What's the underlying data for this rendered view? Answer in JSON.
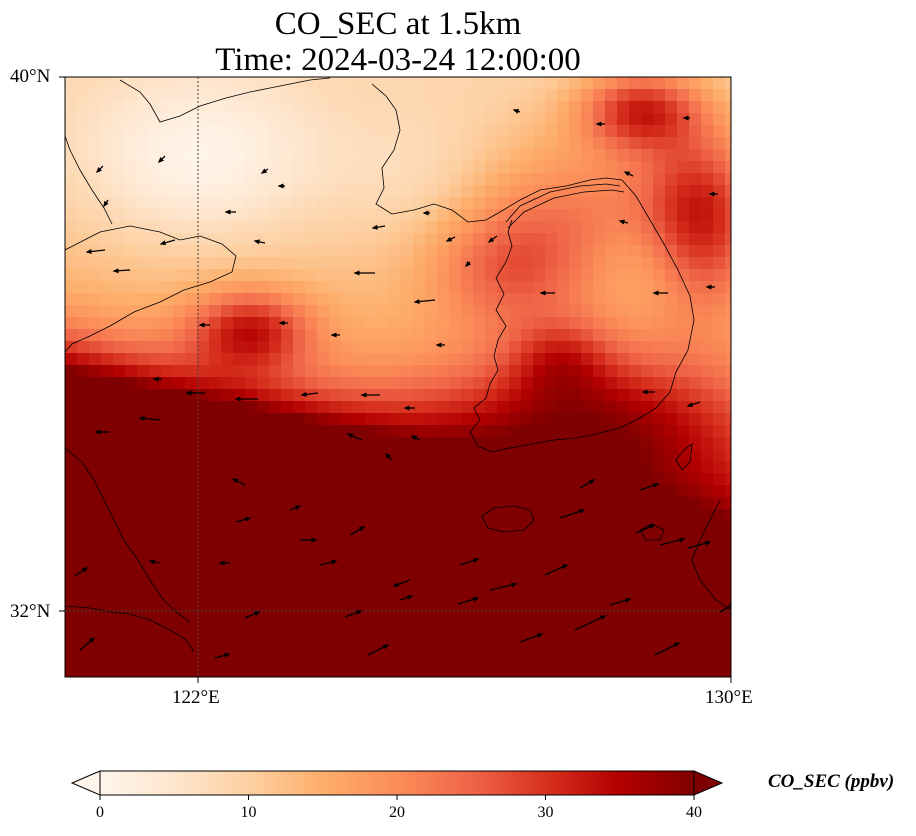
{
  "title": {
    "line1": "CO_SEC at 1.5km",
    "line2": "Time: 2024-03-24 12:00:00"
  },
  "map": {
    "variable": "CO_SEC",
    "height": "1.5km",
    "time": "2024-03-24 12:00:00",
    "extent": {
      "lon_min": 120,
      "lon_max": 130,
      "lat_min": 31,
      "lat_max": 40
    },
    "lat_ticks": [
      {
        "value": 40,
        "label": "40°N"
      },
      {
        "value": 32,
        "label": "32°N"
      }
    ],
    "lon_ticks": [
      {
        "value": 122,
        "label": "122°E"
      },
      {
        "value": 130,
        "label": "130°E"
      }
    ],
    "colormap": [
      "#fff5eb",
      "#fee6ce",
      "#fdd0a2",
      "#fdae6b",
      "#fd8d3c",
      "#f16913",
      "#d94801",
      "#a63603",
      "#7f0000"
    ]
  },
  "colorbar": {
    "label": "CO_SEC (ppbv)",
    "min": 0,
    "max": 40,
    "ticks": [
      "0",
      "10",
      "20",
      "30",
      "40"
    ]
  }
}
